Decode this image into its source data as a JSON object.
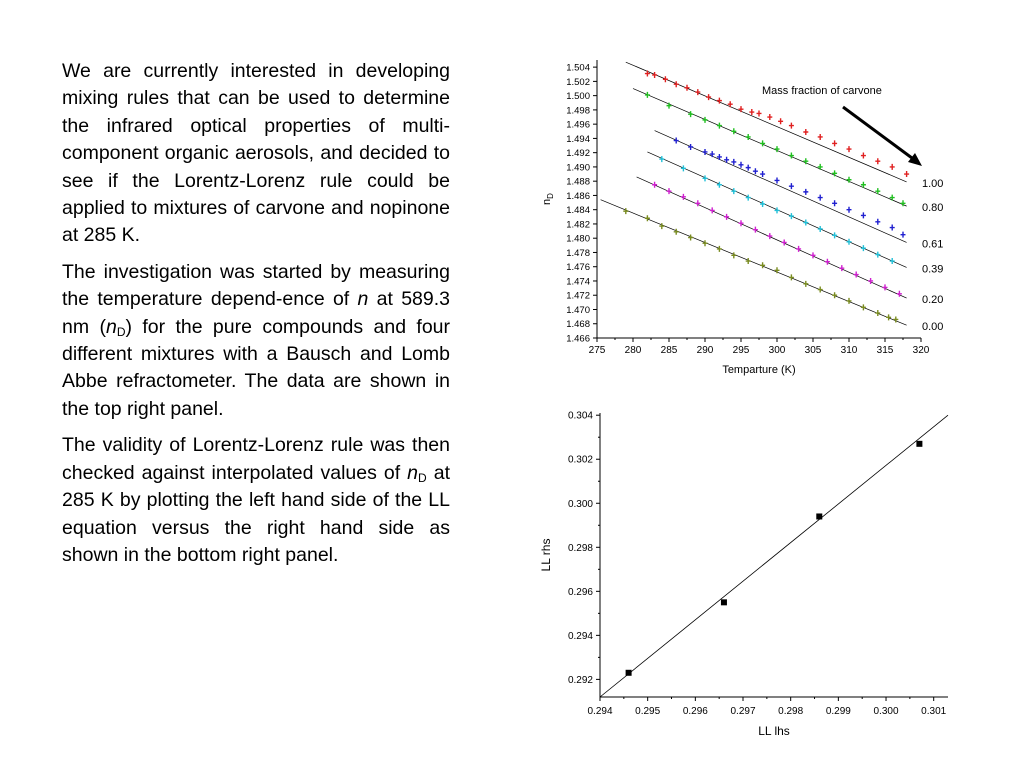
{
  "paragraphs": {
    "p1": "We are currently interested in developing mixing rules that can be used to determine the infrared optical properties of multi-component organic aerosols, and decided to see if the Lorentz-Lorenz rule could be applied to mixtures of carvone and nopinone at 285 K.",
    "p2_a": "The investigation was started by measuring the temperature depend-ence of ",
    "p2_n": "n",
    "p2_b": " at 589.3 nm (",
    "p2_nD_n": "n",
    "p2_nD_sub": "D",
    "p2_c": ") for the pure compounds and four different mixtures with a Bausch and Lomb Abbe refractometer.  The data are shown in the top right panel.",
    "p3_a": "The validity of Lorentz-Lorenz rule was then checked against interpolated values of ",
    "p3_nD_n": "n",
    "p3_nD_sub": "D",
    "p3_b": " at 285 K by plotting the left hand side of the LL equation versus the right hand side as shown in the bottom right panel."
  },
  "chart_data": [
    {
      "type": "scatter",
      "xlabel": "Temparture (K)",
      "ylabel": "n",
      "ylabel_sub": "D",
      "xlim": [
        275,
        320
      ],
      "ylim": [
        1.466,
        1.505
      ],
      "xticks": [
        "275",
        "280",
        "285",
        "290",
        "295",
        "300",
        "305",
        "310",
        "315",
        "320"
      ],
      "yticks": [
        "1.466",
        "1.468",
        "1.470",
        "1.472",
        "1.474",
        "1.476",
        "1.478",
        "1.480",
        "1.482",
        "1.484",
        "1.486",
        "1.488",
        "1.490",
        "1.492",
        "1.494",
        "1.496",
        "1.498",
        "1.500",
        "1.502",
        "1.504"
      ],
      "annotation": "Mass fraction of carvone",
      "series": [
        {
          "name": "1.00",
          "color": "#e02020",
          "fit": [
            279.0,
            1.5047,
            318.0,
            1.4879
          ],
          "points": [
            [
              282,
              1.5031
            ],
            [
              283,
              1.5029
            ],
            [
              284.5,
              1.5023
            ],
            [
              286,
              1.5016
            ],
            [
              287.5,
              1.5011
            ],
            [
              289,
              1.5005
            ],
            [
              290.5,
              1.4998
            ],
            [
              292,
              1.4993
            ],
            [
              293.5,
              1.4988
            ],
            [
              295,
              1.4981
            ],
            [
              296.5,
              1.4977
            ],
            [
              297.5,
              1.4975
            ],
            [
              299,
              1.497
            ],
            [
              300.5,
              1.4964
            ],
            [
              302,
              1.4958
            ],
            [
              304,
              1.4949
            ],
            [
              306,
              1.4942
            ],
            [
              308,
              1.4933
            ],
            [
              310,
              1.4925
            ],
            [
              312,
              1.4916
            ],
            [
              314,
              1.4908
            ],
            [
              316,
              1.49
            ],
            [
              318,
              1.489
            ]
          ]
        },
        {
          "name": "0.80",
          "color": "#20c020",
          "fit": [
            280.0,
            1.501,
            318.0,
            1.4845
          ],
          "points": [
            [
              282,
              1.5001
            ],
            [
              285,
              1.4986
            ],
            [
              288,
              1.4974
            ],
            [
              290,
              1.4966
            ],
            [
              292,
              1.4958
            ],
            [
              294,
              1.495
            ],
            [
              296,
              1.4942
            ],
            [
              298,
              1.4933
            ],
            [
              300,
              1.4925
            ],
            [
              302,
              1.4916
            ],
            [
              304,
              1.4908
            ],
            [
              306,
              1.49
            ],
            [
              308,
              1.4891
            ],
            [
              310,
              1.4882
            ],
            [
              312,
              1.4875
            ],
            [
              314,
              1.4866
            ],
            [
              316,
              1.4857
            ],
            [
              317.5,
              1.4849
            ]
          ]
        },
        {
          "name": "0.61",
          "color": "#2020d0",
          "fit": [
            283.0,
            1.4951,
            318.0,
            1.4794
          ],
          "points": [
            [
              286,
              1.4937
            ],
            [
              288,
              1.4928
            ],
            [
              290,
              1.4921
            ],
            [
              291,
              1.4918
            ],
            [
              292,
              1.4914
            ],
            [
              293,
              1.491
            ],
            [
              294,
              1.4907
            ],
            [
              295,
              1.4903
            ],
            [
              296,
              1.4899
            ],
            [
              297,
              1.4894
            ],
            [
              298,
              1.489
            ],
            [
              300,
              1.4881
            ],
            [
              302,
              1.4873
            ],
            [
              304,
              1.4865
            ],
            [
              306,
              1.4857
            ],
            [
              308,
              1.4849
            ],
            [
              310,
              1.484
            ],
            [
              312,
              1.4832
            ],
            [
              314,
              1.4823
            ],
            [
              316,
              1.4815
            ],
            [
              317.5,
              1.4805
            ]
          ]
        },
        {
          "name": "0.39",
          "color": "#20c0d8",
          "fit": [
            282.0,
            1.4921,
            318.0,
            1.4759
          ],
          "points": [
            [
              284,
              1.4911
            ],
            [
              287,
              1.4898
            ],
            [
              290,
              1.4884
            ],
            [
              292,
              1.4875
            ],
            [
              294,
              1.4866
            ],
            [
              296,
              1.4857
            ],
            [
              298,
              1.4848
            ],
            [
              300,
              1.4839
            ],
            [
              302,
              1.4831
            ],
            [
              304,
              1.4822
            ],
            [
              306,
              1.4813
            ],
            [
              308,
              1.4804
            ],
            [
              310,
              1.4795
            ],
            [
              312,
              1.4786
            ],
            [
              314,
              1.4777
            ],
            [
              316,
              1.4768
            ]
          ]
        },
        {
          "name": "0.20",
          "color": "#d020d0",
          "fit": [
            280.5,
            1.4886,
            318.0,
            1.4716
          ],
          "points": [
            [
              283,
              1.4875
            ],
            [
              285,
              1.4866
            ],
            [
              287,
              1.4858
            ],
            [
              289,
              1.4849
            ],
            [
              291,
              1.4839
            ],
            [
              293,
              1.483
            ],
            [
              295,
              1.4821
            ],
            [
              297,
              1.4812
            ],
            [
              299,
              1.4803
            ],
            [
              301,
              1.4794
            ],
            [
              303,
              1.4785
            ],
            [
              305,
              1.4776
            ],
            [
              307,
              1.4767
            ],
            [
              309,
              1.4758
            ],
            [
              311,
              1.4749
            ],
            [
              313,
              1.474
            ],
            [
              315,
              1.4731
            ],
            [
              317,
              1.4722
            ]
          ]
        },
        {
          "name": "0.00",
          "color": "#7a8c20",
          "fit": [
            275.5,
            1.4854,
            318.0,
            1.4678
          ],
          "points": [
            [
              279,
              1.4838
            ],
            [
              282,
              1.4828
            ],
            [
              284,
              1.4817
            ],
            [
              286,
              1.4809
            ],
            [
              288,
              1.4801
            ],
            [
              290,
              1.4793
            ],
            [
              292,
              1.4785
            ],
            [
              294,
              1.4776
            ],
            [
              296,
              1.4768
            ],
            [
              298,
              1.4762
            ],
            [
              300,
              1.4755
            ],
            [
              302,
              1.4745
            ],
            [
              304,
              1.4736
            ],
            [
              306,
              1.4728
            ],
            [
              308,
              1.472
            ],
            [
              310,
              1.4712
            ],
            [
              312,
              1.4703
            ],
            [
              314,
              1.4695
            ],
            [
              315.5,
              1.4689
            ],
            [
              316.5,
              1.4686
            ]
          ]
        }
      ]
    },
    {
      "type": "scatter",
      "xlabel": "LL lhs",
      "ylabel": "LL rhs",
      "xlim": [
        0.294,
        0.3013
      ],
      "ylim": [
        0.2912,
        0.3041
      ],
      "xticks": [
        "0.294",
        "0.295",
        "0.296",
        "0.297",
        "0.298",
        "0.299",
        "0.300",
        "0.301"
      ],
      "yticks": [
        "0.292",
        "0.294",
        "0.296",
        "0.298",
        "0.300",
        "0.302",
        "0.304"
      ],
      "fit": [
        0.294,
        0.2912,
        0.3013,
        0.304
      ],
      "points": [
        [
          0.2946,
          0.2923
        ],
        [
          0.2966,
          0.2955
        ],
        [
          0.2986,
          0.2994
        ],
        [
          0.3007,
          0.3027
        ]
      ]
    }
  ]
}
